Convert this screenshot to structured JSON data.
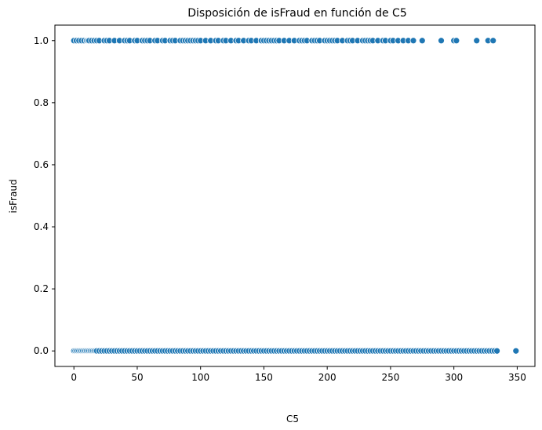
{
  "chart_data": {
    "type": "scatter",
    "title": "Disposición de isFraud en función de C5",
    "xlabel": "C5",
    "ylabel": "isFraud",
    "xlim": [
      -15,
      364
    ],
    "ylim": [
      -0.05,
      1.05
    ],
    "x_ticks": [
      0,
      50,
      100,
      150,
      200,
      250,
      300,
      350
    ],
    "y_ticks": [
      0.0,
      0.2,
      0.4,
      0.6,
      0.8,
      1.0
    ],
    "y_tick_labels": [
      "0.0",
      "0.2",
      "0.4",
      "0.6",
      "0.8",
      "1.0"
    ],
    "grid": false,
    "legend": "none",
    "marker_color": "#1f77b4",
    "marker_edge_color": "#ffffff",
    "series": [
      {
        "y": 1,
        "x": [
          0,
          2,
          4,
          6,
          8,
          10,
          11,
          12,
          14,
          16,
          18,
          20,
          24,
          26,
          28,
          32,
          36,
          40,
          42,
          44,
          48,
          50,
          54,
          56,
          58,
          60,
          64,
          66,
          70,
          72,
          76,
          78,
          80,
          84,
          86,
          88,
          90,
          92,
          94,
          96,
          98,
          100,
          104,
          108,
          112,
          114,
          118,
          120,
          124,
          128,
          130,
          134,
          138,
          140,
          144,
          148,
          150,
          152,
          154,
          156,
          158,
          160,
          162,
          166,
          170,
          174,
          178,
          180,
          182,
          184,
          188,
          190,
          192,
          194,
          198,
          200,
          202,
          204,
          206,
          208,
          212,
          216,
          218,
          220,
          224,
          228,
          230,
          232,
          234,
          236,
          240,
          244,
          246,
          250,
          252,
          256,
          260,
          264,
          268,
          275,
          290,
          300,
          302,
          318,
          327,
          331
        ]
      },
      {
        "y": 0,
        "x": [
          0,
          1,
          2,
          3,
          4,
          5,
          6,
          7,
          8,
          9,
          10,
          11,
          12,
          13,
          14,
          15,
          16,
          17,
          18,
          20,
          22,
          24,
          26,
          28,
          30,
          32,
          34,
          36,
          38,
          40,
          42,
          44,
          46,
          48,
          50,
          52,
          54,
          56,
          58,
          60,
          62,
          64,
          66,
          68,
          70,
          72,
          74,
          76,
          78,
          80,
          82,
          84,
          86,
          88,
          90,
          92,
          94,
          96,
          98,
          100,
          102,
          104,
          106,
          108,
          110,
          112,
          114,
          116,
          118,
          120,
          122,
          124,
          126,
          128,
          130,
          132,
          134,
          136,
          138,
          140,
          142,
          144,
          146,
          148,
          150,
          152,
          154,
          156,
          158,
          160,
          162,
          164,
          166,
          168,
          170,
          172,
          174,
          176,
          178,
          180,
          182,
          184,
          186,
          188,
          190,
          192,
          194,
          196,
          198,
          200,
          202,
          204,
          206,
          208,
          210,
          212,
          214,
          216,
          218,
          220,
          222,
          224,
          226,
          228,
          230,
          232,
          234,
          236,
          238,
          240,
          242,
          244,
          246,
          248,
          250,
          252,
          254,
          256,
          258,
          260,
          262,
          264,
          266,
          268,
          270,
          272,
          274,
          276,
          278,
          280,
          282,
          284,
          286,
          288,
          290,
          292,
          294,
          296,
          298,
          300,
          302,
          304,
          306,
          308,
          310,
          312,
          314,
          316,
          318,
          320,
          322,
          324,
          326,
          328,
          330,
          332,
          334,
          349
        ]
      }
    ]
  }
}
